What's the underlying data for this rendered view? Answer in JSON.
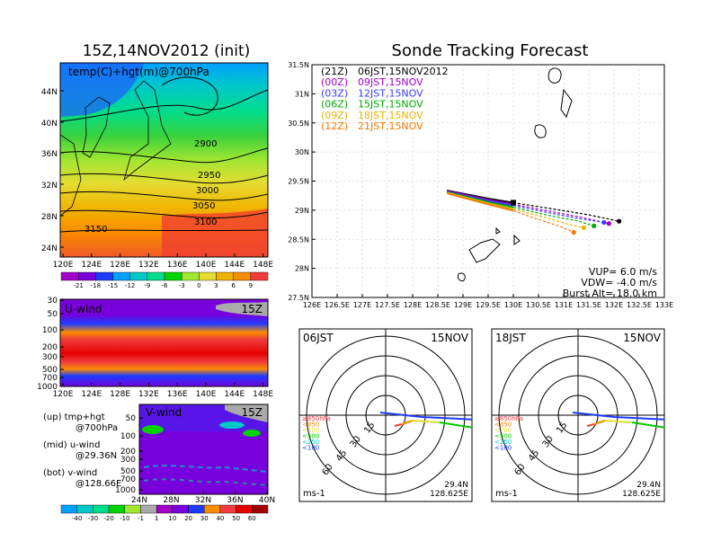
{
  "title_left": "15Z,14NOV2012 (init)",
  "title_right": "Sonde Tracking Forecast",
  "panel_temp": {
    "label": "temp(C)+hgt(m)@700hPa",
    "y_ticks": [
      "44N",
      "40N",
      "36N",
      "32N",
      "28N",
      "24N"
    ],
    "x_ticks": [
      "120E",
      "124E",
      "128E",
      "132E",
      "136E",
      "140E",
      "144E",
      "148E"
    ],
    "contour_labels": [
      "2900",
      "2950",
      "3000",
      "3050",
      "3100",
      "3150"
    ],
    "colorbar": {
      "labels": [
        "-21",
        "-18",
        "-15",
        "-12",
        "-9",
        "-6",
        "-3",
        "0",
        "3",
        "6",
        "9"
      ],
      "colors": [
        "#a000c8",
        "#7800dc",
        "#1e3cff",
        "#00a0ff",
        "#00c8c8",
        "#00dc8c",
        "#00d200",
        "#a0e632",
        "#e6dc32",
        "#f0b400",
        "#fa8c00",
        "#f03c3c"
      ]
    }
  },
  "panel_u": {
    "label": "U-wind",
    "time": "15Z",
    "y_ticks": [
      "30",
      "50",
      "100",
      "200",
      "300",
      "500",
      "700",
      "1000"
    ],
    "x_ticks": [
      "120E",
      "124E",
      "128E",
      "132E",
      "136E",
      "140E",
      "144E",
      "148E"
    ]
  },
  "panel_v": {
    "label": "V-wind",
    "time": "15Z",
    "y_ticks": [
      "50",
      "100",
      "200",
      "300",
      "500",
      "700",
      "1000"
    ],
    "x_ticks": [
      "24N",
      "28N",
      "32N",
      "36N",
      "40N"
    ]
  },
  "legend_left": [
    {
      "k": "(up) tmp+hgt",
      "v": "@700hPa"
    },
    {
      "k": "(mid) u-wind",
      "v": "@29.36N"
    },
    {
      "k": "(bot) v-wind",
      "v": "@128.66E"
    }
  ],
  "wind_colorbar": {
    "labels": [
      "-40",
      "-30",
      "-20",
      "-10",
      "-1",
      "1",
      "10",
      "20",
      "30",
      "40",
      "50",
      "60"
    ],
    "colors": [
      "#00a0ff",
      "#00c8c8",
      "#00dc8c",
      "#00d200",
      "#a0e632",
      "#aaaaaa",
      "#a000c8",
      "#7800dc",
      "#1e3cff",
      "#fa8c00",
      "#f03c3c",
      "#e60000",
      "#a00000"
    ]
  },
  "track_legend": [
    {
      "z": "(21Z)",
      "t": "06JST,15NOV2012",
      "color": "#000000"
    },
    {
      "z": "(00Z)",
      "t": "09JST,15NOV",
      "color": "#a000c8"
    },
    {
      "z": "(03Z)",
      "t": "12JST,15NOV",
      "color": "#3c3cff"
    },
    {
      "z": "(06Z)",
      "t": "15JST,15NOV",
      "color": "#00aa00"
    },
    {
      "z": "(09Z)",
      "t": "18JST,15NOV",
      "color": "#e6b400"
    },
    {
      "z": "(12Z)",
      "t": "21JST,15NOV",
      "color": "#f07800"
    }
  ],
  "track_params": {
    "vup": "VUP= 6.0 m/s",
    "vdw": "VDW= -4.0 m/s",
    "burst": "Burst Alt= 18.0 km"
  },
  "chart_data": {
    "type": "line",
    "title": "Sonde Tracking Forecast",
    "xlim": [
      126,
      133
    ],
    "ylim": [
      27.5,
      31.5
    ],
    "x_ticks": [
      "126E",
      "126.5E",
      "127E",
      "127.5E",
      "128E",
      "128.5E",
      "129E",
      "129.5E",
      "130E",
      "130.5E",
      "131E",
      "131.5E",
      "132E",
      "132.5E",
      "133E"
    ],
    "y_ticks": [
      "31.5N",
      "31N",
      "30.5N",
      "30N",
      "29.5N",
      "29N",
      "28.5N",
      "28N",
      "27.5N"
    ],
    "series": [
      {
        "name": "(21Z) 06JST,15NOV2012",
        "color": "#000000",
        "points": [
          [
            128.68,
            29.34
          ],
          [
            129.5,
            29.2
          ],
          [
            130.0,
            29.13
          ],
          [
            130.8,
            29.02
          ],
          [
            131.5,
            28.92
          ],
          [
            132.1,
            28.81
          ]
        ]
      },
      {
        "name": "(00Z) 09JST,15NOV",
        "color": "#a000c8",
        "points": [
          [
            128.68,
            29.33
          ],
          [
            129.5,
            29.18
          ],
          [
            130.0,
            29.1
          ],
          [
            130.8,
            28.97
          ],
          [
            131.4,
            28.87
          ],
          [
            131.9,
            28.77
          ]
        ]
      },
      {
        "name": "(03Z) 12JST,15NOV",
        "color": "#3c3cff",
        "points": [
          [
            128.68,
            29.32
          ],
          [
            129.5,
            29.16
          ],
          [
            130.0,
            29.08
          ],
          [
            130.8,
            28.94
          ],
          [
            131.35,
            28.85
          ],
          [
            131.8,
            28.79
          ]
        ]
      },
      {
        "name": "(06Z) 15JST,15NOV",
        "color": "#00aa00",
        "points": [
          [
            128.68,
            29.31
          ],
          [
            129.5,
            29.14
          ],
          [
            130.0,
            29.05
          ],
          [
            130.7,
            28.91
          ],
          [
            131.25,
            28.82
          ],
          [
            131.6,
            28.73
          ]
        ]
      },
      {
        "name": "(09Z) 18JST,15NOV",
        "color": "#e6b400",
        "points": [
          [
            128.68,
            29.3
          ],
          [
            129.5,
            29.12
          ],
          [
            130.0,
            29.02
          ],
          [
            130.6,
            28.88
          ],
          [
            131.05,
            28.77
          ],
          [
            131.4,
            28.7
          ]
        ]
      },
      {
        "name": "(12Z) 21JST,15NOV",
        "color": "#f07800",
        "points": [
          [
            128.68,
            29.29
          ],
          [
            129.5,
            29.1
          ],
          [
            130.0,
            28.99
          ],
          [
            130.5,
            28.84
          ],
          [
            130.9,
            28.73
          ],
          [
            131.2,
            28.62
          ]
        ]
      }
    ]
  },
  "hodo_left": {
    "title": "06JST",
    "date": "15NOV",
    "unit": "ms-1",
    "lat": "29.4N",
    "lon": "128.625E"
  },
  "hodo_right": {
    "title": "18JST",
    "date": "15NOV",
    "unit": "ms-1",
    "lat": "29.4N",
    "lon": "128.625E"
  },
  "hodo_rings": [
    "15",
    "30",
    "45",
    "60"
  ],
  "hodo_levels": [
    {
      "t": "≥850hPa",
      "color": "#f03c3c"
    },
    {
      "t": "<850",
      "color": "#f08c00"
    },
    {
      "t": "<700",
      "color": "#e6dc32"
    },
    {
      "t": "<500",
      "color": "#00c800"
    },
    {
      "t": "<250",
      "color": "#00c8c8"
    },
    {
      "t": "<100",
      "color": "#1e3cff"
    }
  ]
}
